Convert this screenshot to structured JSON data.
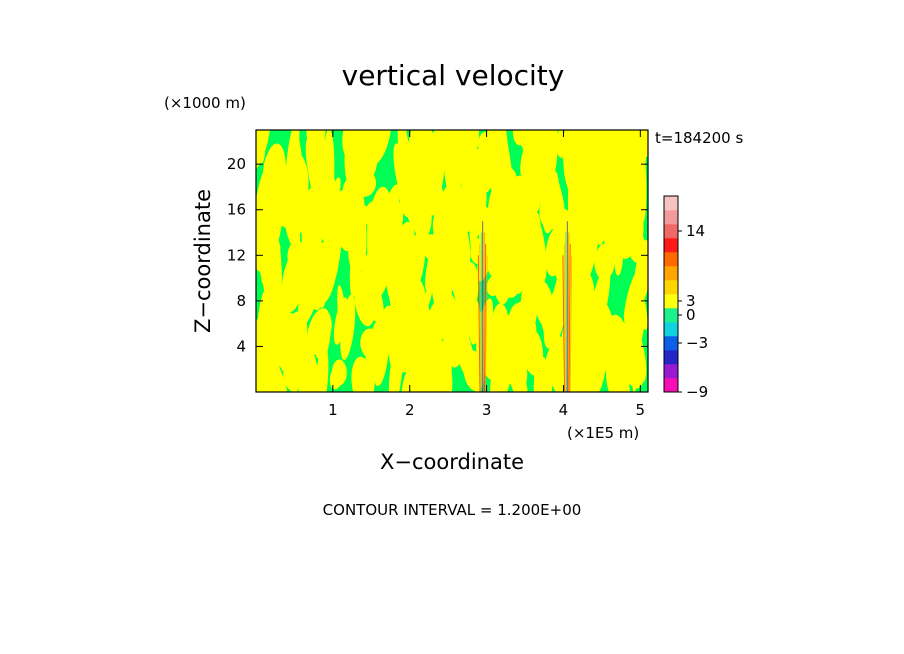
{
  "chart_data": {
    "type": "heatmap",
    "title": "vertical velocity",
    "xlabel": "X−coordinate",
    "ylabel": "Z−coordinate",
    "x_unit_label": "(×1E5 m)",
    "y_unit_label": "(×1000 m)",
    "time_label": "t=184200 s",
    "footer": "CONTOUR INTERVAL = 1.200E+00",
    "x_range": [
      0,
      5.1
    ],
    "y_range": [
      0,
      23
    ],
    "x_ticks": [
      "1",
      "2",
      "3",
      "4",
      "5"
    ],
    "y_ticks": [
      "4",
      "8",
      "12",
      "16",
      "20"
    ],
    "contour_interval": 1.2,
    "dominant_colors": {
      "negative_small": "#00ff55",
      "positive_small": "#ffff00"
    },
    "features": [
      {
        "label": "updraft column",
        "x": 2.95,
        "z_range": [
          0,
          15
        ]
      },
      {
        "label": "updraft column",
        "x": 4.05,
        "z_range": [
          0,
          15
        ]
      }
    ],
    "colorbar": {
      "tick_labels": [
        "14",
        "3",
        "0",
        "−3",
        "−9"
      ],
      "colors": [
        "#f50fb4",
        "#9a1ad0",
        "#2525c8",
        "#0b5fe8",
        "#13d2e0",
        "#1ef08c",
        "#ffff10",
        "#ffd700",
        "#ffa500",
        "#ff6a00",
        "#ff1a1a",
        "#f06868",
        "#f49a9a",
        "#f7c2c2"
      ]
    }
  }
}
